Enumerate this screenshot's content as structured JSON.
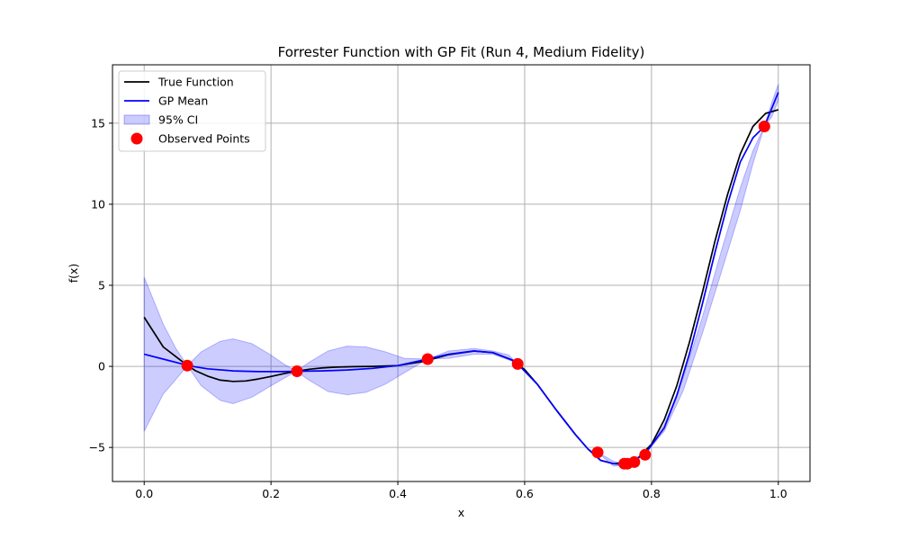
{
  "chart_data": {
    "type": "line",
    "title": "Forrester Function with GP Fit (Run 4, Medium Fidelity)",
    "xlabel": "x",
    "ylabel": "f(x)",
    "xlim": [
      -0.05,
      1.05
    ],
    "ylim": [
      -7.1,
      18.6
    ],
    "xticks": [
      0.0,
      0.2,
      0.4,
      0.6,
      0.8,
      1.0
    ],
    "xtick_labels": [
      "0.0",
      "0.2",
      "0.4",
      "0.6",
      "0.8",
      "1.0"
    ],
    "yticks": [
      -5,
      0,
      5,
      10,
      15
    ],
    "ytick_labels": [
      "−5",
      "0",
      "5",
      "10",
      "15"
    ],
    "grid": true,
    "legend_position": "top-left",
    "colors": {
      "true_function": "#000000",
      "gp_mean": "#0000ff",
      "ci_fill": "#0000ff",
      "observed": "#ff0000"
    },
    "series": [
      {
        "name": "True Function",
        "kind": "line",
        "x": [
          0.0,
          0.03,
          0.06,
          0.08,
          0.1,
          0.12,
          0.14,
          0.16,
          0.18,
          0.2,
          0.22,
          0.24,
          0.26,
          0.28,
          0.3,
          0.33,
          0.36,
          0.4,
          0.44,
          0.48,
          0.52,
          0.55,
          0.58,
          0.6,
          0.62,
          0.65,
          0.68,
          0.7,
          0.72,
          0.74,
          0.76,
          0.78,
          0.8,
          0.82,
          0.84,
          0.86,
          0.88,
          0.9,
          0.92,
          0.94,
          0.96,
          0.98,
          1.0
        ],
        "y": [
          3.03,
          1.2,
          0.3,
          -0.25,
          -0.6,
          -0.85,
          -0.93,
          -0.9,
          -0.78,
          -0.62,
          -0.45,
          -0.3,
          -0.18,
          -0.1,
          -0.05,
          -0.02,
          0.0,
          0.05,
          0.3,
          0.72,
          0.95,
          0.85,
          0.4,
          -0.2,
          -1.1,
          -2.7,
          -4.2,
          -5.1,
          -5.8,
          -6.0,
          -5.95,
          -5.6,
          -4.8,
          -3.3,
          -1.2,
          1.5,
          4.5,
          7.7,
          10.6,
          13.1,
          14.8,
          15.6,
          15.83
        ]
      },
      {
        "name": "GP Mean",
        "kind": "line",
        "x": [
          0.0,
          0.03,
          0.06,
          0.068,
          0.1,
          0.14,
          0.18,
          0.22,
          0.24,
          0.28,
          0.32,
          0.36,
          0.4,
          0.447,
          0.48,
          0.52,
          0.55,
          0.58,
          0.589,
          0.62,
          0.65,
          0.68,
          0.7,
          0.72,
          0.74,
          0.757,
          0.77,
          0.79,
          0.82,
          0.84,
          0.86,
          0.88,
          0.9,
          0.92,
          0.94,
          0.96,
          0.978,
          1.0
        ],
        "y": [
          0.75,
          0.45,
          0.15,
          0.05,
          -0.15,
          -0.28,
          -0.32,
          -0.32,
          -0.3,
          -0.28,
          -0.22,
          -0.12,
          0.05,
          0.45,
          0.75,
          0.95,
          0.85,
          0.4,
          0.15,
          -1.1,
          -2.7,
          -4.2,
          -5.1,
          -5.8,
          -6.0,
          -6.05,
          -5.85,
          -5.4,
          -3.8,
          -1.8,
          0.8,
          3.8,
          7.0,
          10.0,
          12.6,
          14.1,
          14.8,
          16.9
        ]
      },
      {
        "name": "95% CI",
        "kind": "band",
        "x": [
          0.0,
          0.03,
          0.05,
          0.068,
          0.09,
          0.12,
          0.14,
          0.17,
          0.2,
          0.22,
          0.24,
          0.26,
          0.29,
          0.32,
          0.35,
          0.38,
          0.41,
          0.447,
          0.48,
          0.52,
          0.55,
          0.575,
          0.589,
          0.62,
          0.65,
          0.68,
          0.7,
          0.715,
          0.74,
          0.757,
          0.77,
          0.79,
          0.82,
          0.85,
          0.88,
          0.91,
          0.94,
          0.96,
          0.978,
          0.99,
          1.0
        ],
        "upper": [
          5.5,
          2.6,
          1.1,
          0.05,
          0.9,
          1.55,
          1.7,
          1.4,
          0.7,
          0.15,
          -0.3,
          0.25,
          0.95,
          1.25,
          1.2,
          0.9,
          0.5,
          0.45,
          0.95,
          1.1,
          0.95,
          0.7,
          0.15,
          -1.1,
          -2.7,
          -4.2,
          -5.1,
          -5.3,
          -5.85,
          -6.0,
          -5.85,
          -5.4,
          -3.6,
          -0.7,
          3.0,
          7.1,
          11.0,
          13.3,
          14.8,
          16.3,
          17.4
        ],
        "lower": [
          -4.0,
          -1.7,
          -0.8,
          0.05,
          -1.2,
          -2.1,
          -2.3,
          -1.9,
          -1.2,
          -0.75,
          -0.3,
          -0.85,
          -1.55,
          -1.75,
          -1.6,
          -1.1,
          -0.4,
          0.45,
          0.5,
          0.75,
          0.75,
          0.4,
          0.15,
          -1.1,
          -2.7,
          -4.2,
          -5.1,
          -5.3,
          -6.15,
          -6.1,
          -5.85,
          -5.4,
          -4.0,
          -1.5,
          2.0,
          5.8,
          9.6,
          12.5,
          14.8,
          15.4,
          16.4
        ]
      },
      {
        "name": "Observed Points",
        "kind": "scatter",
        "x": [
          0.068,
          0.241,
          0.447,
          0.589,
          0.715,
          0.757,
          0.762,
          0.773,
          0.79,
          0.978
        ],
        "y": [
          0.05,
          -0.3,
          0.45,
          0.15,
          -5.3,
          -6.0,
          -6.0,
          -5.9,
          -5.45,
          14.8
        ]
      }
    ],
    "legend": [
      "True Function",
      "GP Mean",
      "95% CI",
      "Observed Points"
    ]
  }
}
